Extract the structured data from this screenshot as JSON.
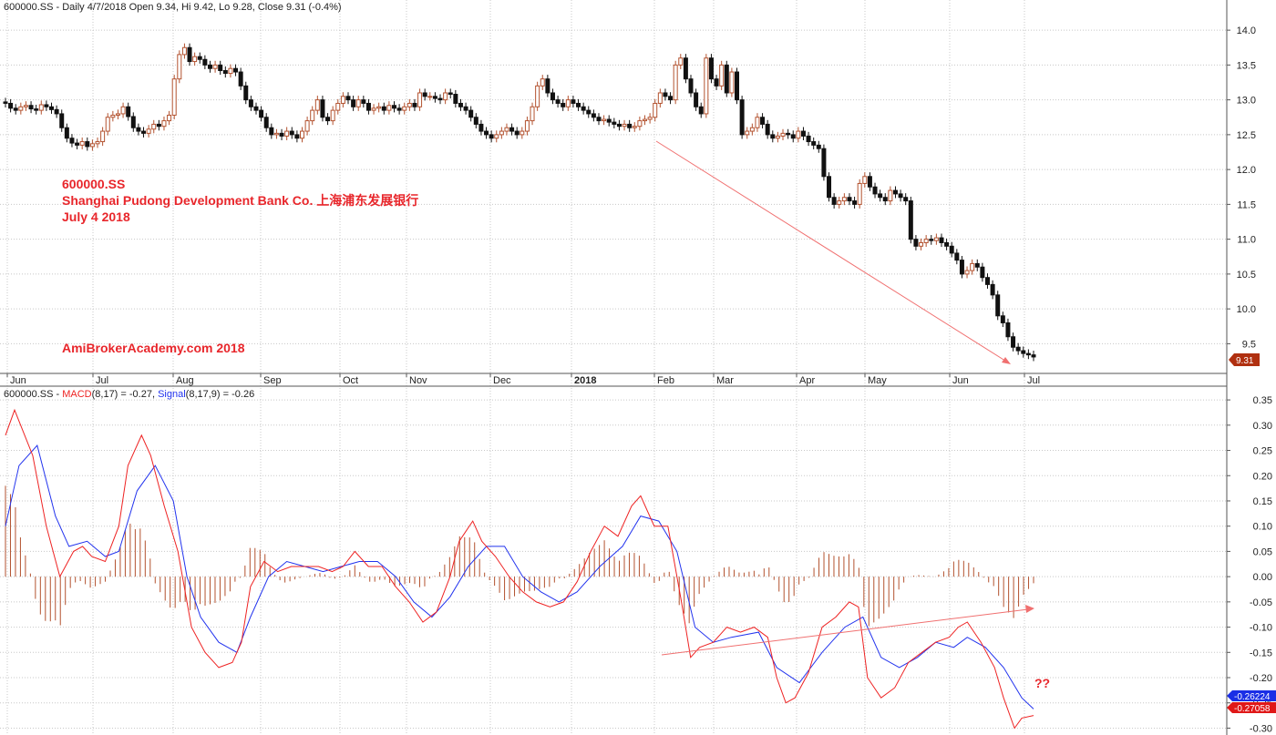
{
  "chart_data": [
    {
      "type": "candlestick",
      "title": "600000.SS - Daily 4/7/2018 Open 9.34, Hi 9.42, Lo 9.28, Close 9.31 (-0.4%)",
      "months": [
        "Jun",
        "Jul",
        "Aug",
        "Sep",
        "Oct",
        "Nov",
        "Dec",
        "2018",
        "Feb",
        "Mar",
        "Apr",
        "May",
        "Jun",
        "Jul"
      ],
      "y_ticks": [
        9.5,
        10.0,
        10.5,
        11.0,
        11.5,
        12.0,
        12.5,
        13.0,
        13.5,
        14.0
      ],
      "ylim": [
        9.1,
        14.25
      ],
      "last_price_label": "9.31",
      "grid": true,
      "closes": [
        12.95,
        12.88,
        12.85,
        12.9,
        12.92,
        12.87,
        12.85,
        12.93,
        12.9,
        12.86,
        12.8,
        12.6,
        12.45,
        12.38,
        12.35,
        12.4,
        12.33,
        12.37,
        12.4,
        12.55,
        12.75,
        12.78,
        12.8,
        12.9,
        12.76,
        12.6,
        12.55,
        12.52,
        12.58,
        12.65,
        12.62,
        12.7,
        12.78,
        13.3,
        13.65,
        13.75,
        13.55,
        13.62,
        13.58,
        13.5,
        13.45,
        13.5,
        13.42,
        13.38,
        13.45,
        13.4,
        13.2,
        13.0,
        12.9,
        12.85,
        12.75,
        12.6,
        12.5,
        12.52,
        12.48,
        12.55,
        12.5,
        12.45,
        12.55,
        12.7,
        12.85,
        13.0,
        12.75,
        12.7,
        12.85,
        12.95,
        13.05,
        13.0,
        12.9,
        13.0,
        12.95,
        12.85,
        12.88,
        12.9,
        12.85,
        12.92,
        12.88,
        12.85,
        12.9,
        12.95,
        12.9,
        13.1,
        13.05,
        13.05,
        13.02,
        13.0,
        13.1,
        13.08,
        12.95,
        12.9,
        12.85,
        12.75,
        12.65,
        12.55,
        12.5,
        12.45,
        12.5,
        12.55,
        12.6,
        12.55,
        12.5,
        12.55,
        12.7,
        12.9,
        13.2,
        13.3,
        13.1,
        13.0,
        12.95,
        12.9,
        13.0,
        12.95,
        12.9,
        12.85,
        12.8,
        12.75,
        12.7,
        12.72,
        12.68,
        12.65,
        12.62,
        12.65,
        12.6,
        12.62,
        12.7,
        12.72,
        12.75,
        12.95,
        13.1,
        13.05,
        13.0,
        13.5,
        13.6,
        13.3,
        13.1,
        12.9,
        12.8,
        13.6,
        13.3,
        13.2,
        13.5,
        13.1,
        13.4,
        13.0,
        12.5,
        12.55,
        12.6,
        12.75,
        12.65,
        12.5,
        12.45,
        12.48,
        12.52,
        12.5,
        12.45,
        12.55,
        12.48,
        12.4,
        12.35,
        12.3,
        11.9,
        11.6,
        11.5,
        11.55,
        11.6,
        11.55,
        11.5,
        11.8,
        11.9,
        11.75,
        11.65,
        11.6,
        11.55,
        11.7,
        11.65,
        11.6,
        11.55,
        11.0,
        10.9,
        10.95,
        11.0,
        10.98,
        11.02,
        10.95,
        10.9,
        10.8,
        10.7,
        10.5,
        10.55,
        10.65,
        10.6,
        10.45,
        10.35,
        10.2,
        9.9,
        9.8,
        9.6,
        9.45,
        9.4,
        9.36,
        9.34,
        9.31
      ]
    },
    {
      "type": "line",
      "title_prefix": "600000.SS - ",
      "macd_label": "MACD",
      "macd_params": "(8,17)",
      "macd_value": " = -0.27, ",
      "signal_label": "Signal",
      "signal_params": "(8,17,9)",
      "signal_value": " = -0.26",
      "y_ticks": [
        -0.3,
        -0.25,
        -0.2,
        -0.15,
        -0.1,
        -0.05,
        0.0,
        0.05,
        0.1,
        0.15,
        0.2,
        0.25,
        0.3,
        0.35
      ],
      "ylim": [
        -0.31,
        0.37
      ],
      "signal_badge": "-0.26224",
      "macd_badge": "-0.27058",
      "macd_points": [
        [
          0,
          0.28
        ],
        [
          10,
          0.33
        ],
        [
          30,
          0.24
        ],
        [
          45,
          0.1
        ],
        [
          60,
          0.0
        ],
        [
          75,
          0.05
        ],
        [
          85,
          0.06
        ],
        [
          95,
          0.04
        ],
        [
          110,
          0.03
        ],
        [
          125,
          0.1
        ],
        [
          135,
          0.22
        ],
        [
          150,
          0.28
        ],
        [
          160,
          0.24
        ],
        [
          175,
          0.14
        ],
        [
          190,
          0.05
        ],
        [
          205,
          -0.1
        ],
        [
          220,
          -0.15
        ],
        [
          235,
          -0.18
        ],
        [
          250,
          -0.17
        ],
        [
          260,
          -0.13
        ],
        [
          270,
          -0.02
        ],
        [
          285,
          0.03
        ],
        [
          300,
          0.01
        ],
        [
          315,
          0.02
        ],
        [
          330,
          0.02
        ],
        [
          345,
          0.02
        ],
        [
          360,
          0.01
        ],
        [
          372,
          0.02
        ],
        [
          385,
          0.05
        ],
        [
          400,
          0.02
        ],
        [
          415,
          0.02
        ],
        [
          430,
          -0.02
        ],
        [
          445,
          -0.05
        ],
        [
          460,
          -0.09
        ],
        [
          475,
          -0.07
        ],
        [
          490,
          0.0
        ],
        [
          500,
          0.07
        ],
        [
          515,
          0.11
        ],
        [
          525,
          0.07
        ],
        [
          540,
          0.04
        ],
        [
          555,
          0.0
        ],
        [
          570,
          -0.03
        ],
        [
          585,
          -0.05
        ],
        [
          600,
          -0.06
        ],
        [
          615,
          -0.05
        ],
        [
          630,
          -0.01
        ],
        [
          645,
          0.05
        ],
        [
          660,
          0.1
        ],
        [
          675,
          0.08
        ],
        [
          690,
          0.14
        ],
        [
          700,
          0.16
        ],
        [
          715,
          0.1
        ],
        [
          730,
          0.1
        ],
        [
          745,
          -0.05
        ],
        [
          755,
          -0.16
        ],
        [
          765,
          -0.14
        ],
        [
          780,
          -0.13
        ],
        [
          795,
          -0.1
        ],
        [
          810,
          -0.11
        ],
        [
          825,
          -0.1
        ],
        [
          840,
          -0.12
        ],
        [
          850,
          -0.2
        ],
        [
          860,
          -0.25
        ],
        [
          870,
          -0.24
        ],
        [
          885,
          -0.19
        ],
        [
          900,
          -0.1
        ],
        [
          915,
          -0.08
        ],
        [
          930,
          -0.05
        ],
        [
          940,
          -0.06
        ],
        [
          950,
          -0.2
        ],
        [
          965,
          -0.24
        ],
        [
          980,
          -0.22
        ],
        [
          995,
          -0.17
        ],
        [
          1010,
          -0.15
        ],
        [
          1025,
          -0.13
        ],
        [
          1040,
          -0.12
        ],
        [
          1050,
          -0.1
        ],
        [
          1060,
          -0.09
        ],
        [
          1075,
          -0.13
        ],
        [
          1090,
          -0.18
        ],
        [
          1100,
          -0.24
        ],
        [
          1112,
          -0.3
        ],
        [
          1120,
          -0.28
        ],
        [
          1133,
          -0.275
        ]
      ],
      "signal_points": [
        [
          0,
          0.1
        ],
        [
          15,
          0.22
        ],
        [
          35,
          0.26
        ],
        [
          55,
          0.12
        ],
        [
          70,
          0.06
        ],
        [
          90,
          0.07
        ],
        [
          110,
          0.04
        ],
        [
          125,
          0.05
        ],
        [
          145,
          0.17
        ],
        [
          165,
          0.22
        ],
        [
          185,
          0.15
        ],
        [
          200,
          0.0
        ],
        [
          215,
          -0.08
        ],
        [
          235,
          -0.13
        ],
        [
          255,
          -0.15
        ],
        [
          270,
          -0.08
        ],
        [
          290,
          0.0
        ],
        [
          310,
          0.03
        ],
        [
          330,
          0.02
        ],
        [
          350,
          0.01
        ],
        [
          370,
          0.02
        ],
        [
          390,
          0.03
        ],
        [
          410,
          0.03
        ],
        [
          430,
          0.0
        ],
        [
          450,
          -0.05
        ],
        [
          470,
          -0.08
        ],
        [
          490,
          -0.04
        ],
        [
          510,
          0.02
        ],
        [
          530,
          0.06
        ],
        [
          550,
          0.06
        ],
        [
          570,
          0.0
        ],
        [
          590,
          -0.03
        ],
        [
          610,
          -0.05
        ],
        [
          630,
          -0.03
        ],
        [
          655,
          0.02
        ],
        [
          680,
          0.06
        ],
        [
          700,
          0.12
        ],
        [
          720,
          0.11
        ],
        [
          740,
          0.05
        ],
        [
          760,
          -0.1
        ],
        [
          780,
          -0.13
        ],
        [
          800,
          -0.12
        ],
        [
          830,
          -0.11
        ],
        [
          850,
          -0.18
        ],
        [
          875,
          -0.21
        ],
        [
          900,
          -0.15
        ],
        [
          925,
          -0.1
        ],
        [
          945,
          -0.08
        ],
        [
          965,
          -0.16
        ],
        [
          985,
          -0.18
        ],
        [
          1005,
          -0.16
        ],
        [
          1025,
          -0.13
        ],
        [
          1045,
          -0.14
        ],
        [
          1060,
          -0.12
        ],
        [
          1080,
          -0.14
        ],
        [
          1100,
          -0.18
        ],
        [
          1120,
          -0.24
        ],
        [
          1133,
          -0.262
        ]
      ]
    }
  ],
  "annotations": {
    "symbol": "600000.SS",
    "company": "Shanghai Pudong Development Bank Co. 上海浦东发展银行",
    "date": "July 4 2018",
    "watermark": "AmiBrokerAcademy.com  2018",
    "question": "??"
  },
  "colors": {
    "macd_line": "#ee2222",
    "signal_line": "#2233ee",
    "histogram": "#b3522f",
    "annotation": "#e8262b",
    "trendline": "#f07070",
    "price_badge": "#b03010",
    "grid": "#c8c8c8"
  }
}
